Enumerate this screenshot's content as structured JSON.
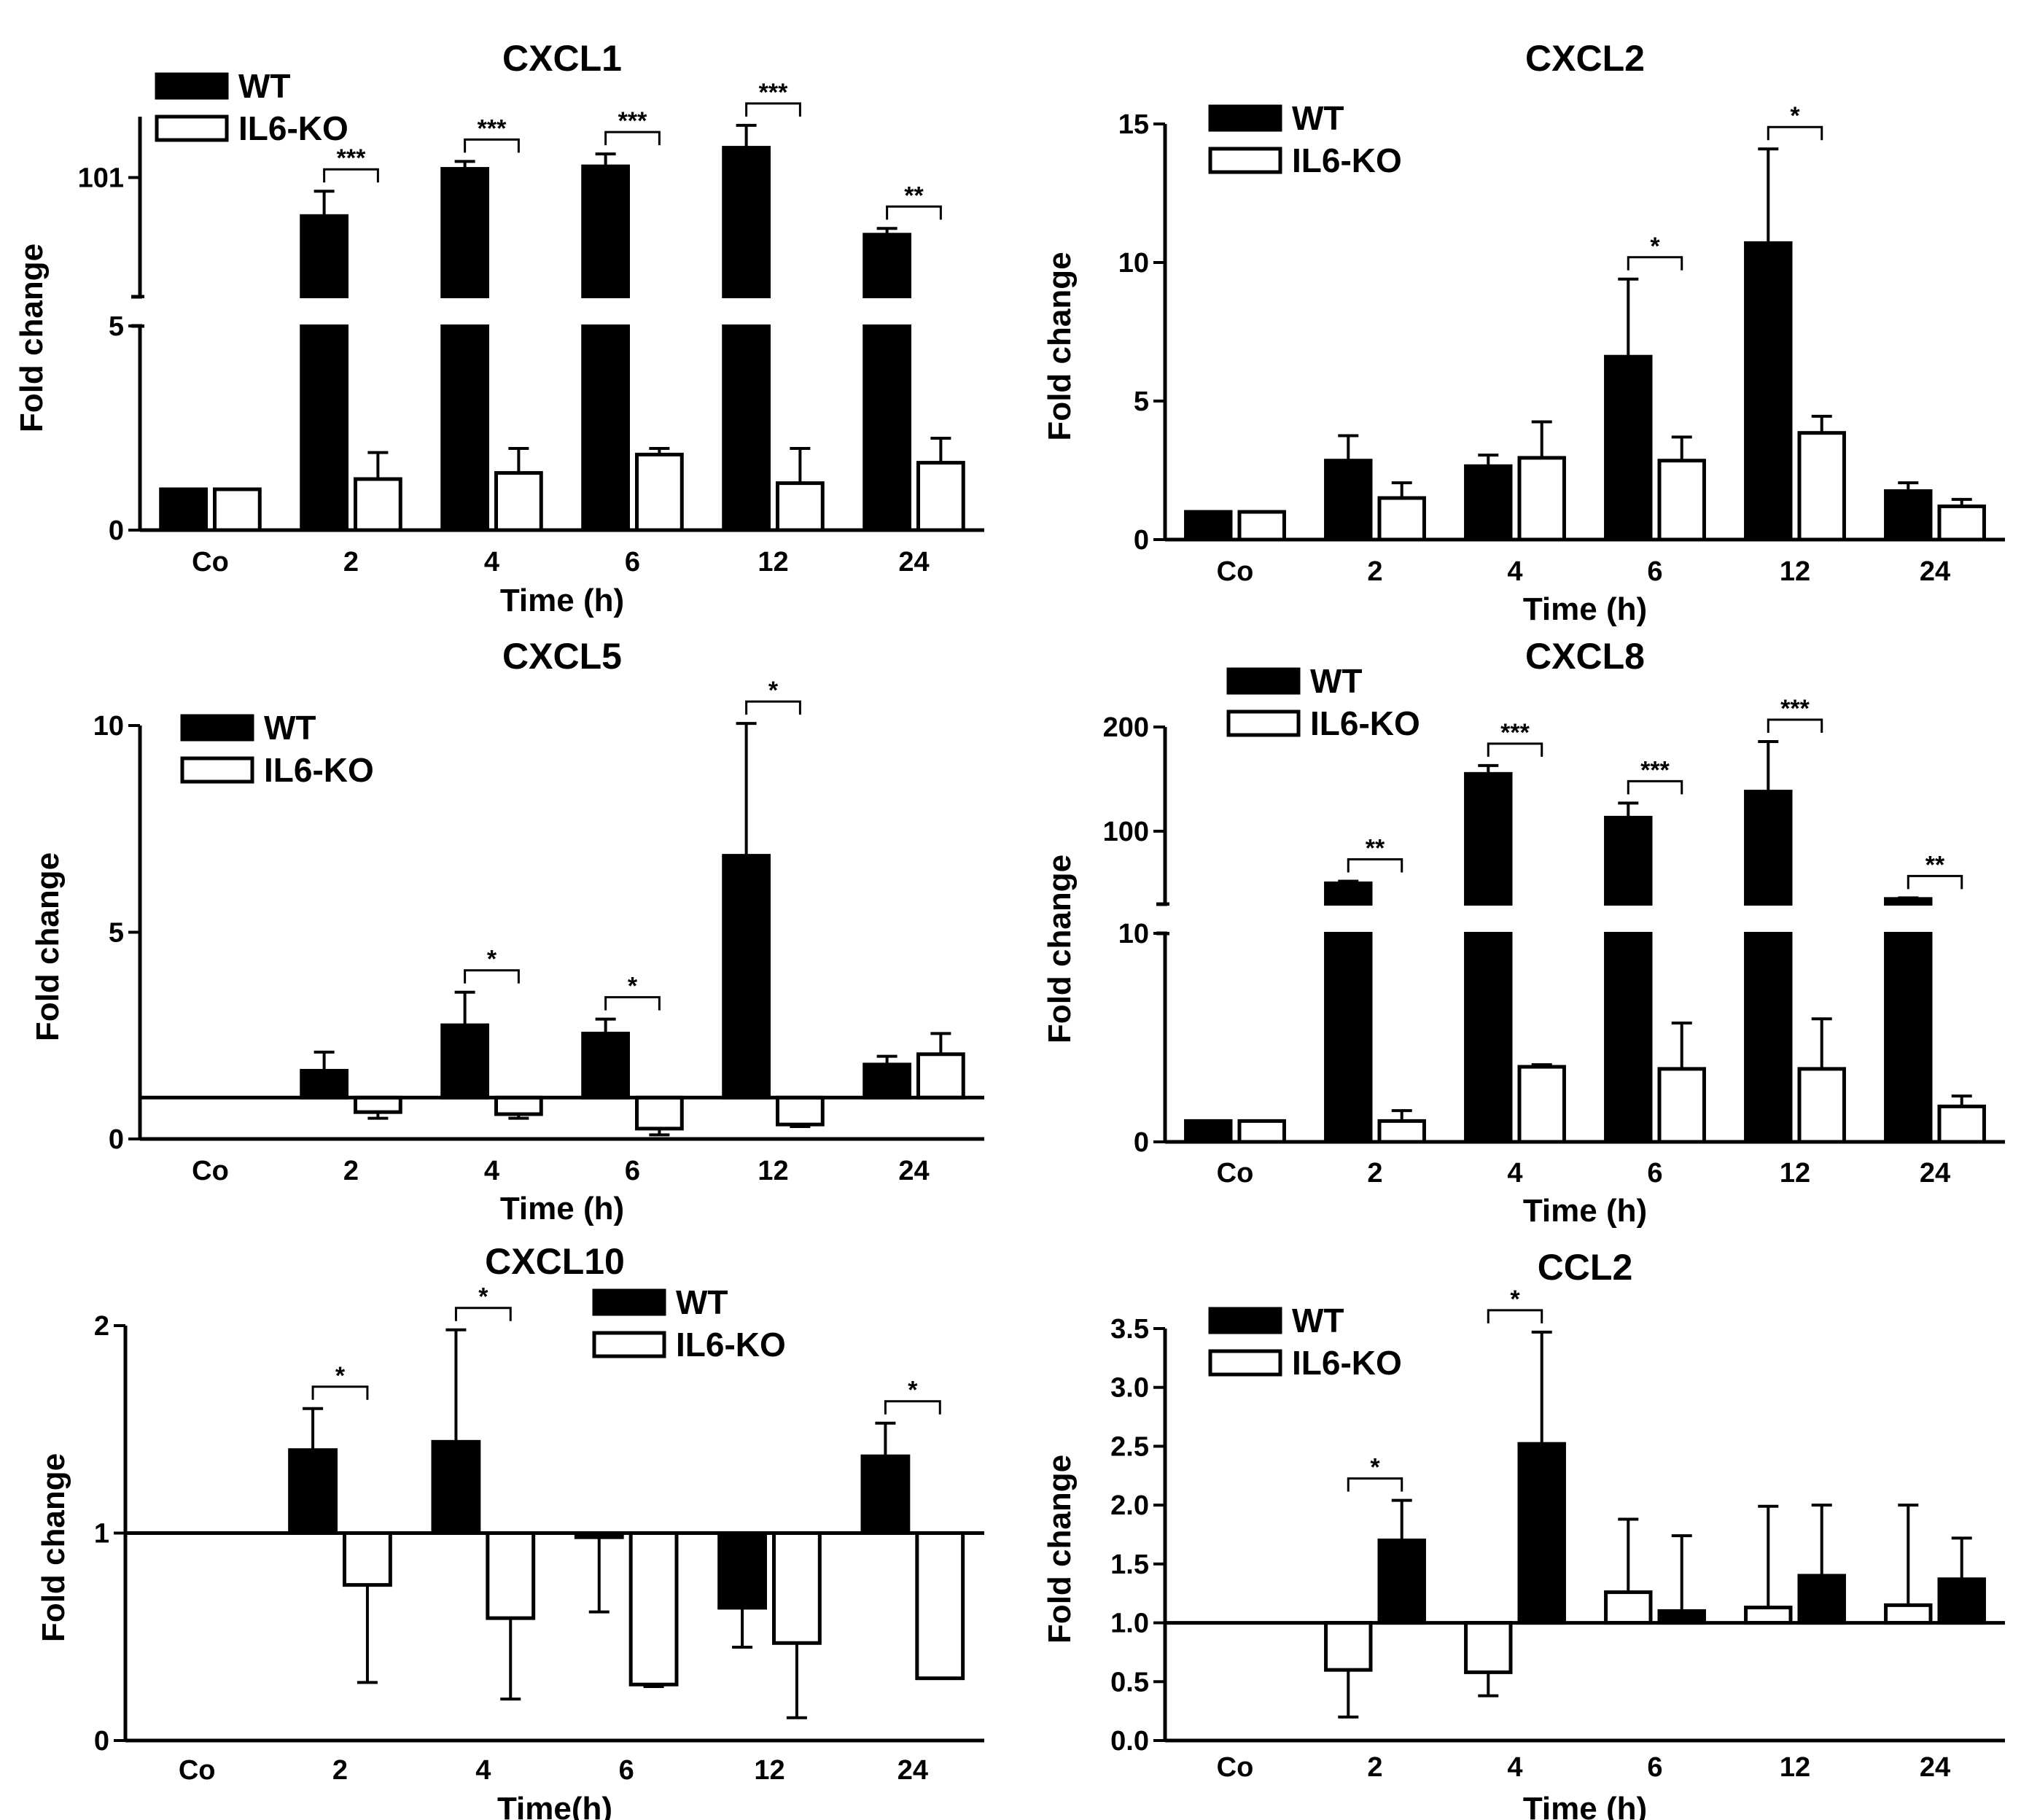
{
  "figure": {
    "series_names": [
      "WT",
      "IL6-KO"
    ],
    "colors": {
      "WT": "#000000",
      "IL6-KO": "#ffffff",
      "stroke": "#000000"
    }
  },
  "chart_data": [
    {
      "id": "cxcl1",
      "type": "bar",
      "title": "CXCL1",
      "xlabel": "Time (h)",
      "ylabel": "Fold change",
      "categories": [
        "Co",
        "2",
        "4",
        "6",
        "12",
        "24"
      ],
      "series": [
        {
          "name": "WT",
          "values": [
            1,
            70,
            108,
            110,
            125,
            55
          ],
          "errors": [
            0,
            20,
            6,
            10,
            18,
            5
          ]
        },
        {
          "name": "IL6-KO",
          "values": [
            1,
            1.25,
            1.4,
            1.85,
            1.15,
            1.65
          ],
          "errors": [
            0,
            0.65,
            0.6,
            0.15,
            0.85,
            0.6
          ]
        }
      ],
      "y_axis": {
        "broken": true,
        "lower_range": [
          0,
          5
        ],
        "upper_range": [
          5,
          150
        ],
        "lower_ticks": [
          "0",
          "5"
        ],
        "upper_ticks": [
          "101"
        ]
      },
      "significance": [
        {
          "category": "2",
          "label": "***"
        },
        {
          "category": "4",
          "label": "***"
        },
        {
          "category": "6",
          "label": "***"
        },
        {
          "category": "12",
          "label": "***"
        },
        {
          "category": "24",
          "label": "**"
        }
      ],
      "legend_position": "top-left"
    },
    {
      "id": "cxcl2",
      "type": "bar",
      "title": "CXCL2",
      "xlabel": "Time (h)",
      "ylabel": "Fold change",
      "categories": [
        "Co",
        "2",
        "4",
        "6",
        "12",
        "24"
      ],
      "series": [
        {
          "name": "WT",
          "values": [
            1,
            2.85,
            2.65,
            6.6,
            10.7,
            1.75
          ],
          "errors": [
            0,
            0.9,
            0.4,
            2.8,
            3.4,
            0.3
          ]
        },
        {
          "name": "IL6-KO",
          "values": [
            1,
            1.5,
            2.95,
            2.85,
            3.85,
            1.2
          ],
          "errors": [
            0,
            0.55,
            1.3,
            0.85,
            0.6,
            0.25
          ]
        }
      ],
      "ylim": [
        0,
        15
      ],
      "yticks": [
        "0",
        "5",
        "10",
        "15"
      ],
      "significance": [
        {
          "category": "6",
          "label": "*"
        },
        {
          "category": "12",
          "label": "*"
        }
      ],
      "legend_position": "top-left"
    },
    {
      "id": "cxcl5",
      "type": "bar",
      "title": "CXCL5",
      "xlabel": "Time (h)",
      "ylabel": "Fold change",
      "categories": [
        "Co",
        "2",
        "4",
        "6",
        "12",
        "24"
      ],
      "baseline": 1,
      "series": [
        {
          "name": "WT",
          "values": [
            null,
            1.65,
            2.75,
            2.55,
            6.85,
            1.8
          ],
          "errors": [
            0,
            0.45,
            0.8,
            0.35,
            3.2,
            0.2
          ]
        },
        {
          "name": "IL6-KO",
          "values": [
            null,
            0.65,
            0.6,
            0.25,
            0.35,
            2.05
          ],
          "errors": [
            0,
            0.15,
            0.1,
            0.15,
            0.05,
            0.5
          ]
        }
      ],
      "ylim": [
        0,
        10
      ],
      "yticks": [
        "0",
        "5",
        "10"
      ],
      "significance": [
        {
          "category": "4",
          "label": "*"
        },
        {
          "category": "6",
          "label": "*"
        },
        {
          "category": "12",
          "label": "*"
        }
      ],
      "legend_position": "top-left"
    },
    {
      "id": "cxcl8",
      "type": "bar",
      "title": "CXCL8",
      "xlabel": "Time (h)",
      "ylabel": "Fold change",
      "categories": [
        "Co",
        "2",
        "4",
        "6",
        "12",
        "24"
      ],
      "series": [
        {
          "name": "WT",
          "values": [
            1,
            50,
            155,
            113,
            138,
            35
          ],
          "errors": [
            0,
            2,
            8,
            14,
            48,
            1
          ]
        },
        {
          "name": "IL6-KO",
          "values": [
            1,
            1,
            3.6,
            3.5,
            3.5,
            1.7
          ],
          "errors": [
            0,
            0.5,
            0.1,
            2.2,
            2.4,
            0.5
          ]
        }
      ],
      "y_axis": {
        "broken": true,
        "lower_range": [
          0,
          10
        ],
        "upper_range": [
          30,
          200
        ],
        "lower_ticks": [
          "0",
          "10"
        ],
        "upper_ticks": [
          "100",
          "200"
        ]
      },
      "significance": [
        {
          "category": "2",
          "label": "**"
        },
        {
          "category": "4",
          "label": "***"
        },
        {
          "category": "6",
          "label": "***"
        },
        {
          "category": "12",
          "label": "***"
        },
        {
          "category": "24",
          "label": "**"
        }
      ],
      "legend_position": "top-left"
    },
    {
      "id": "cxcl10",
      "type": "bar",
      "title": "CXCL10",
      "xlabel": "Time(h)",
      "ylabel": "Fold change",
      "categories": [
        "Co",
        "2",
        "4",
        "6",
        "12",
        "24"
      ],
      "baseline": 1,
      "series": [
        {
          "name": "WT",
          "values": [
            null,
            1.4,
            1.44,
            0.98,
            0.64,
            1.37
          ],
          "errors": [
            0,
            0.2,
            0.54,
            0.36,
            0.19,
            0.16
          ]
        },
        {
          "name": "IL6-KO",
          "values": [
            null,
            0.75,
            0.59,
            0.27,
            0.47,
            0.3
          ],
          "errors": [
            0,
            0.47,
            0.39,
            0.01,
            0.36,
            0
          ]
        }
      ],
      "ylim": [
        0,
        2
      ],
      "yticks": [
        "0",
        "1",
        "2"
      ],
      "significance": [
        {
          "category": "2",
          "label": "*"
        },
        {
          "category": "4",
          "label": "*"
        },
        {
          "category": "24",
          "label": "*"
        }
      ],
      "legend_position": "top-right"
    },
    {
      "id": "ccl2",
      "type": "bar",
      "title": "CCL2",
      "xlabel": "Time (h)",
      "ylabel": "Fold change",
      "categories": [
        "Co",
        "2",
        "4",
        "6",
        "12",
        "24"
      ],
      "baseline": 1,
      "bar_order": [
        "IL6-KO",
        "WT"
      ],
      "series": [
        {
          "name": "WT",
          "values": [
            null,
            1.7,
            2.52,
            1.1,
            1.4,
            1.37
          ],
          "errors": [
            0,
            0.34,
            0.95,
            0.64,
            0.6,
            0.35
          ]
        },
        {
          "name": "IL6-KO",
          "values": [
            null,
            0.6,
            0.58,
            1.26,
            1.13,
            1.15
          ],
          "errors": [
            0,
            0.4,
            0.2,
            0.62,
            0.86,
            0.85
          ]
        }
      ],
      "ylim": [
        0,
        3.5
      ],
      "yticks": [
        "0.0",
        "0.5",
        "1.0",
        "1.5",
        "2.0",
        "2.5",
        "3.0",
        "3.5"
      ],
      "significance": [
        {
          "category": "2",
          "label": "*"
        },
        {
          "category": "4",
          "label": "*"
        }
      ],
      "legend_position": "top-left"
    }
  ]
}
